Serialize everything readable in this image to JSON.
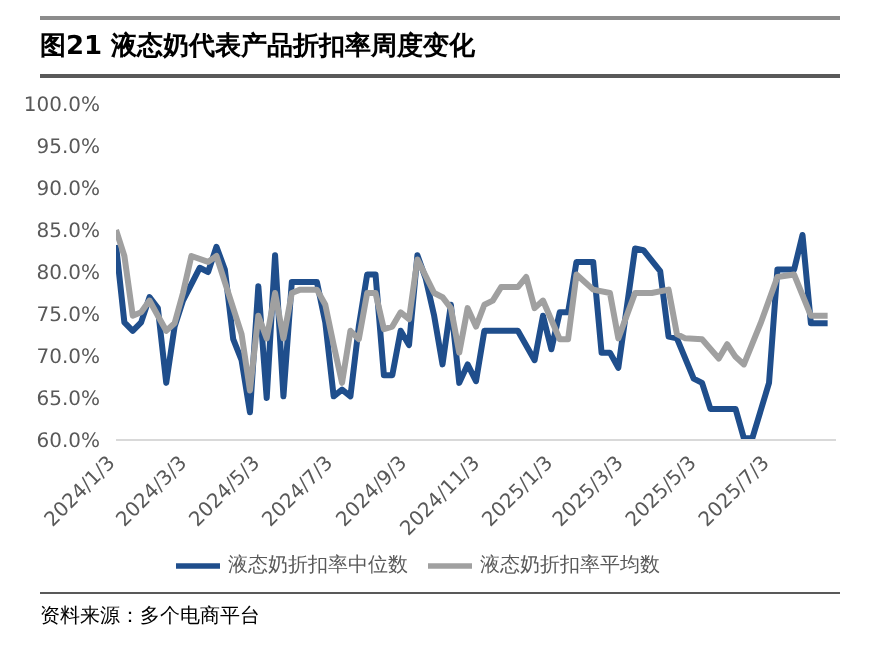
{
  "chart_data": {
    "type": "line",
    "title": "图21 液态奶代表产品折扣率周度变化",
    "annotations": [
      "资料来源：多个电商平台"
    ],
    "series": [
      {
        "name": "液态奶折扣率中位数",
        "color": "#1f4e8c",
        "x": [
          "2024-01-03",
          "2024-01-10",
          "2024-01-17",
          "2024-01-24",
          "2024-01-31",
          "2024-02-07",
          "2024-02-14",
          "2024-02-21",
          "2024-02-28",
          "2024-03-13",
          "2024-03-20",
          "2024-03-27",
          "2024-04-03",
          "2024-04-10",
          "2024-04-17",
          "2024-04-24",
          "2024-05-01",
          "2024-05-08",
          "2024-05-15",
          "2024-05-22",
          "2024-05-29",
          "2024-06-19",
          "2024-06-26",
          "2024-07-03",
          "2024-07-10",
          "2024-07-17",
          "2024-07-24",
          "2024-07-31",
          "2024-08-07",
          "2024-08-14",
          "2024-08-21",
          "2024-08-28",
          "2024-09-04",
          "2024-09-11",
          "2024-09-18",
          "2024-09-25",
          "2024-10-02",
          "2024-10-09",
          "2024-10-16",
          "2024-10-23",
          "2024-10-30",
          "2024-11-06",
          "2024-12-04",
          "2024-12-18",
          "2024-12-25",
          "2025-01-01",
          "2025-01-08",
          "2025-01-15",
          "2025-01-22",
          "2025-02-05",
          "2025-02-12",
          "2025-02-19",
          "2025-02-26",
          "2025-03-12",
          "2025-03-19",
          "2025-04-02",
          "2025-04-09",
          "2025-04-16",
          "2025-04-30",
          "2025-05-07",
          "2025-05-14",
          "2025-06-04",
          "2025-06-11",
          "2025-06-18",
          "2025-07-02",
          "2025-07-09",
          "2025-07-23",
          "2025-07-30",
          "2025-08-06",
          "2025-08-20"
        ],
        "values": [
          83.2,
          74,
          73,
          74,
          77,
          75.7,
          66.8,
          73.5,
          76.6,
          80.5,
          80,
          83,
          80.3,
          72,
          69.5,
          63.3,
          78.3,
          65,
          82,
          65.2,
          78.8,
          78.8,
          74,
          65.2,
          66,
          65.2,
          73.5,
          79.7,
          79.7,
          67.7,
          67.7,
          73,
          71.3,
          82,
          79.2,
          74.8,
          69,
          76.1,
          66.8,
          69,
          67,
          73,
          73,
          69.5,
          74.8,
          70.8,
          75.2,
          75.2,
          81.2,
          81.2,
          70.4,
          70.4,
          68.6,
          82.8,
          82.6,
          80.1,
          72.3,
          72.1,
          67.3,
          66.8,
          63.7,
          63.7,
          60.2,
          60.2,
          66.8,
          80.3,
          80.3,
          84.4,
          73.9,
          73.9
        ]
      },
      {
        "name": "液态奶折扣率平均数",
        "color": "#a0a0a0",
        "x": [
          "2024-01-03",
          "2024-01-10",
          "2024-01-17",
          "2024-01-24",
          "2024-01-31",
          "2024-02-07",
          "2024-02-14",
          "2024-02-21",
          "2024-02-28",
          "2024-03-06",
          "2024-03-20",
          "2024-03-27",
          "2024-04-03",
          "2024-04-17",
          "2024-04-24",
          "2024-05-01",
          "2024-05-08",
          "2024-05-15",
          "2024-05-22",
          "2024-05-29",
          "2024-06-05",
          "2024-06-19",
          "2024-06-26",
          "2024-07-03",
          "2024-07-10",
          "2024-07-17",
          "2024-07-24",
          "2024-07-31",
          "2024-08-07",
          "2024-08-14",
          "2024-08-21",
          "2024-08-28",
          "2024-09-04",
          "2024-09-11",
          "2024-09-25",
          "2024-10-02",
          "2024-10-09",
          "2024-10-16",
          "2024-10-23",
          "2024-10-30",
          "2024-11-06",
          "2024-11-13",
          "2024-11-20",
          "2024-12-04",
          "2024-12-11",
          "2024-12-18",
          "2024-12-25",
          "2025-01-08",
          "2025-01-15",
          "2025-01-22",
          "2025-02-05",
          "2025-02-19",
          "2025-02-26",
          "2025-03-12",
          "2025-03-26",
          "2025-04-09",
          "2025-04-16",
          "2025-04-23",
          "2025-05-07",
          "2025-05-21",
          "2025-05-28",
          "2025-06-04",
          "2025-06-11",
          "2025-06-25",
          "2025-07-09",
          "2025-07-23",
          "2025-08-06",
          "2025-08-20"
        ],
        "values": [
          85,
          81.9,
          74.8,
          75.2,
          76.6,
          74.8,
          73,
          73.9,
          77.5,
          81.9,
          81.2,
          81.9,
          78.8,
          72.6,
          65.9,
          74.8,
          72.1,
          77.5,
          72.1,
          77.5,
          77.9,
          77.9,
          76.1,
          71.3,
          66.8,
          73,
          72,
          77.5,
          77.5,
          73.2,
          73.5,
          75.2,
          74.4,
          81.5,
          77.5,
          77,
          75.7,
          70.4,
          75.7,
          73.5,
          76.1,
          76.6,
          78.2,
          78.2,
          79.4,
          75.7,
          76.6,
          72,
          72,
          79.7,
          77.9,
          77.5,
          72.1,
          77.5,
          77.5,
          77.9,
          72.6,
          72.1,
          72,
          69.7,
          71.4,
          69.9,
          69,
          73.9,
          79.4,
          79.7,
          74.8,
          74.8
        ]
      }
    ],
    "xlim": [
      "2024-01-03",
      "2025-08-27"
    ],
    "xticks": [
      {
        "value": "2024-01-03",
        "label": "2024/1/3"
      },
      {
        "value": "2024-03-03",
        "label": "2024/3/3"
      },
      {
        "value": "2024-05-03",
        "label": "2024/5/3"
      },
      {
        "value": "2024-07-03",
        "label": "2024/7/3"
      },
      {
        "value": "2024-09-03",
        "label": "2024/9/3"
      },
      {
        "value": "2024-11-03",
        "label": "2024/11/3"
      },
      {
        "value": "2025-01-03",
        "label": "2025/1/3"
      },
      {
        "value": "2025-03-03",
        "label": "2025/3/3"
      },
      {
        "value": "2025-05-03",
        "label": "2025/5/3"
      },
      {
        "value": "2025-07-03",
        "label": "2025/7/3"
      }
    ],
    "ylim": [
      60,
      100
    ],
    "yticks": [
      {
        "value": 60,
        "label": "60.0%"
      },
      {
        "value": 65,
        "label": "65.0%"
      },
      {
        "value": 70,
        "label": "70.0%"
      },
      {
        "value": 75,
        "label": "75.0%"
      },
      {
        "value": 80,
        "label": "80.0%"
      },
      {
        "value": 85,
        "label": "85.0%"
      },
      {
        "value": 90,
        "label": "90.0%"
      },
      {
        "value": 95,
        "label": "95.0%"
      },
      {
        "value": 100,
        "label": "100.0%"
      }
    ],
    "grid": false,
    "legend": "bottom",
    "marker": "none",
    "line_style": "solid"
  }
}
